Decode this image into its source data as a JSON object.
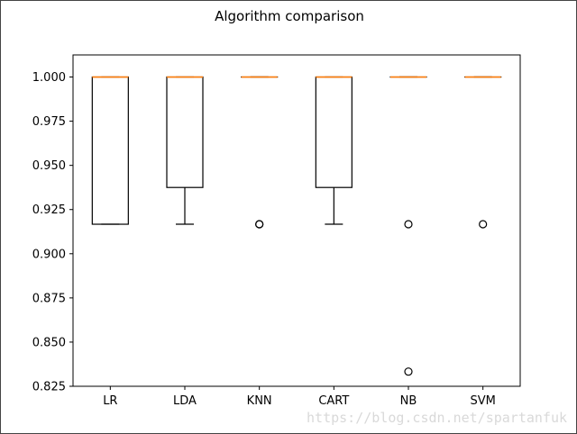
{
  "chart_data": {
    "type": "boxplot",
    "title": "Algorithm comparison",
    "xlabel": "",
    "ylabel": "",
    "ylim": [
      0.825,
      1.0125
    ],
    "yticks": [
      "0.825",
      "0.850",
      "0.875",
      "0.900",
      "0.925",
      "0.950",
      "0.975",
      "1.000"
    ],
    "categories": [
      "LR",
      "LDA",
      "KNN",
      "CART",
      "NB",
      "SVM"
    ],
    "boxes": [
      {
        "name": "LR",
        "q1": 0.9167,
        "median": 1.0,
        "q3": 1.0,
        "whislo": 0.9167,
        "whishi": 1.0,
        "fliers": []
      },
      {
        "name": "LDA",
        "q1": 0.9375,
        "median": 1.0,
        "q3": 1.0,
        "whislo": 0.9167,
        "whishi": 1.0,
        "fliers": []
      },
      {
        "name": "KNN",
        "q1": 1.0,
        "median": 1.0,
        "q3": 1.0,
        "whislo": 1.0,
        "whishi": 1.0,
        "fliers": [
          0.9167,
          0.9167
        ]
      },
      {
        "name": "CART",
        "q1": 0.9375,
        "median": 1.0,
        "q3": 1.0,
        "whislo": 0.9167,
        "whishi": 1.0,
        "fliers": []
      },
      {
        "name": "NB",
        "q1": 1.0,
        "median": 1.0,
        "q3": 1.0,
        "whislo": 1.0,
        "whishi": 1.0,
        "fliers": [
          0.9167,
          0.8333
        ]
      },
      {
        "name": "SVM",
        "q1": 1.0,
        "median": 1.0,
        "q3": 1.0,
        "whislo": 1.0,
        "whishi": 1.0,
        "fliers": [
          0.9167
        ]
      }
    ],
    "colors": {
      "box": "#000000",
      "median": "#ff7f0e",
      "background": "#ffffff"
    },
    "grid": false,
    "legend": "none"
  },
  "watermark": "https://blog.csdn.net/spartanfuk"
}
